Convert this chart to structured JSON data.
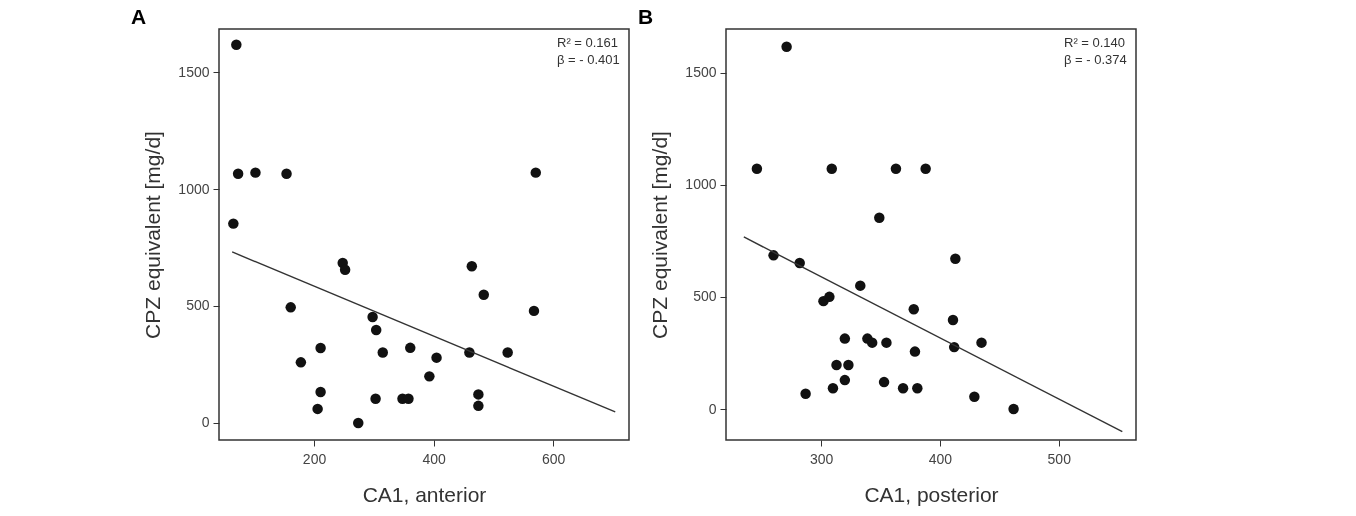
{
  "chart_data": [
    {
      "type": "scatter",
      "title": "A",
      "xlabel": "CA1, anterior",
      "ylabel": "CPZ equivalent [mg/d]",
      "annotations": [
        "R² = 0.161",
        "β = - 0.401"
      ],
      "xlim": [
        41,
        727
      ],
      "ylim": [
        -73,
        1684
      ],
      "xticks": [
        200,
        400,
        600
      ],
      "yticks": [
        0,
        500,
        1000,
        1500
      ],
      "series": [
        {
          "type": "scatter",
          "marker": "circle",
          "color": "#111111",
          "x": [
            70,
            73,
            102,
            154,
            65,
            571,
            248,
            252,
            464,
            484,
            161,
            568,
            298,
            304,
            211,
            361,
            315,
            460,
            524,
            405,
            178,
            393,
            211,
            475,
            303,
            348,
            358,
            206,
            475,
            274
          ],
          "values": [
            1617,
            1065,
            1070,
            1065,
            852,
            1070,
            684,
            655,
            670,
            548,
            494,
            479,
            453,
            397,
            320,
            321,
            301,
            301,
            301,
            279,
            259,
            199,
            132,
            122,
            103,
            103,
            103,
            60,
            73,
            0
          ]
        },
        {
          "type": "line",
          "color": "#333333",
          "x": [
            63,
            704
          ],
          "values": [
            731,
            47
          ]
        }
      ]
    },
    {
      "type": "scatter",
      "title": "B",
      "xlabel": "CA1, posterior",
      "ylabel": "CPZ equivalent [mg/d]",
      "annotations": [
        "R² = 0.140",
        "β = - 0.374"
      ],
      "xlim": [
        220,
        565
      ],
      "ylim": [
        -138,
        1694
      ],
      "xticks": [
        300,
        400,
        500
      ],
      "yticks": [
        0,
        500,
        1000,
        1500
      ],
      "series": [
        {
          "type": "scatter",
          "marker": "circle",
          "color": "#111111",
          "x": [
            271,
            246,
            309,
            363,
            388,
            349,
            260,
            282,
            413,
            333,
            302,
            307,
            378,
            411,
            320,
            339,
            343,
            355,
            435,
            412,
            379,
            313,
            323,
            320,
            310,
            353,
            369,
            381,
            287,
            429,
            462
          ],
          "values": [
            1615,
            1071,
            1071,
            1071,
            1071,
            853,
            685,
            651,
            670,
            550,
            481,
            500,
            445,
            397,
            314,
            314,
            296,
            296,
            296,
            276,
            256,
            196,
            196,
            129,
            93,
            120,
            93,
            93,
            68,
            55,
            0
          ]
        },
        {
          "type": "line",
          "color": "#333333",
          "x": [
            235,
            553.5
          ],
          "values": [
            767,
            -101
          ]
        }
      ]
    }
  ]
}
